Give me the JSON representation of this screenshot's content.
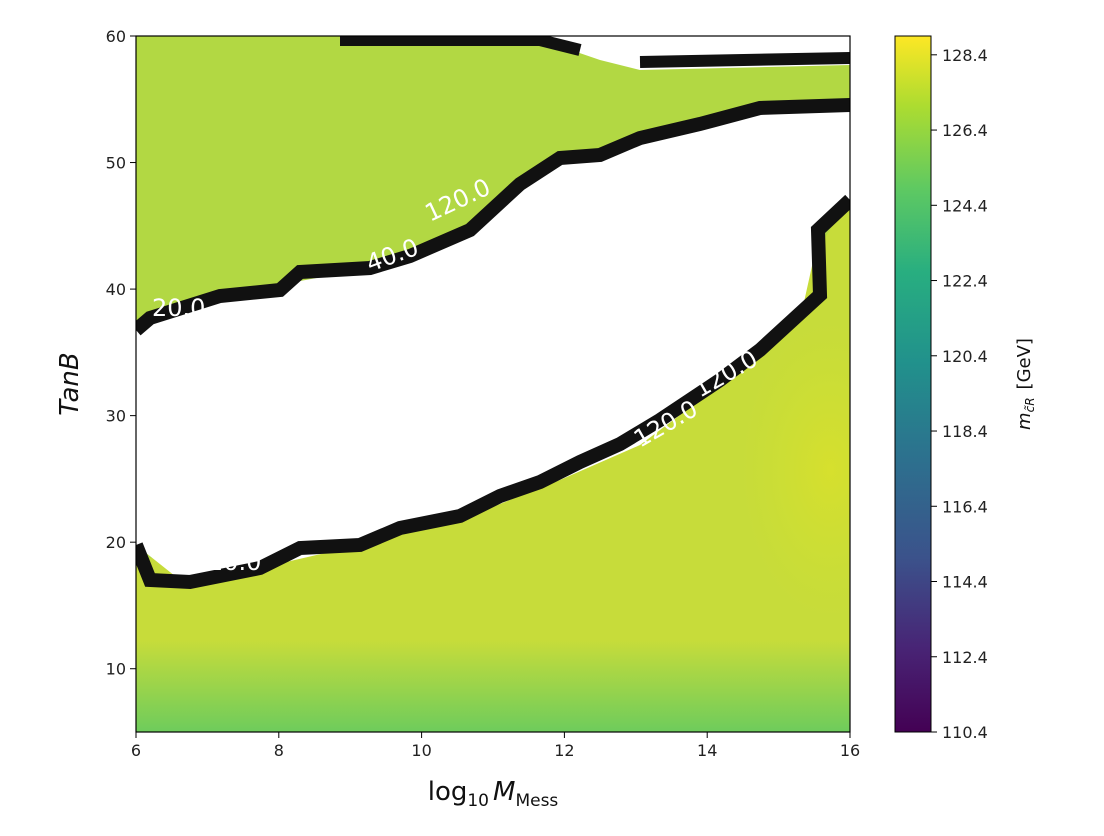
{
  "chart_data": {
    "type": "heatmap",
    "subtype": "filled-contour",
    "xlabel_base": "log",
    "xlabel_sub": "10",
    "xlabel_var": "M",
    "xlabel_var_sub": "Mess",
    "ylabel": "TanB",
    "xlim": [
      6,
      16
    ],
    "ylim": [
      5,
      60
    ],
    "x_ticks": [
      "6",
      "8",
      "10",
      "12",
      "14",
      "16"
    ],
    "y_ticks": [
      "10",
      "20",
      "30",
      "40",
      "50",
      "60"
    ],
    "colorbar": {
      "label_main": "m",
      "label_unit": "[GeV]",
      "range": [
        110.4,
        128.9
      ],
      "ticks": [
        "110.4",
        "112.4",
        "114.4",
        "116.4",
        "118.4",
        "120.4",
        "122.4",
        "124.4",
        "126.4",
        "128.4"
      ],
      "colormap": "viridis"
    },
    "contour_labels": [
      "20.0",
      "20.0",
      "120.0",
      "120.0",
      "40.0",
      "120.0"
    ],
    "regions": [
      {
        "region": "upper-left (TanB ~38-58, log10 M 6-12)",
        "value_approx": 125.8
      },
      {
        "region": "lower-right (TanB ~5-45, log10 M 7-16)",
        "value_approx": 127.2
      },
      {
        "region": "maximum near log10 M 15-16, TanB 20-35",
        "value_approx": 128.0
      },
      {
        "region": "bottom edge TanB ~5",
        "value_approx": 124.5
      },
      {
        "region": "excluded band (white)",
        "value_approx": null
      }
    ]
  }
}
